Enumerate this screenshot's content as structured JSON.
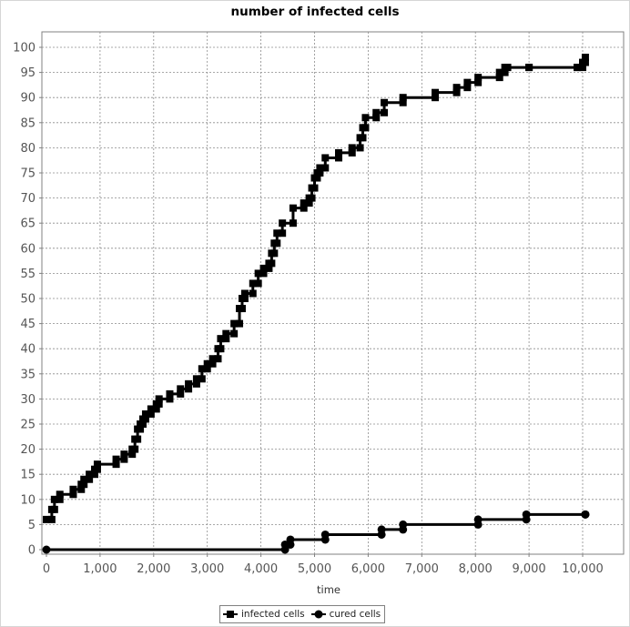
{
  "chart_data": {
    "type": "line",
    "title": "number of infected cells",
    "xlabel": "time",
    "ylabel": "",
    "xlim": [
      0,
      10300
    ],
    "ylim": [
      0,
      102
    ],
    "x_ticks": [
      "0",
      "1,000",
      "2,000",
      "3,000",
      "4,000",
      "5,000",
      "6,000",
      "7,000",
      "8,000",
      "9,000",
      "10,000"
    ],
    "y_ticks": [
      "0",
      "5",
      "10",
      "15",
      "20",
      "25",
      "30",
      "35",
      "40",
      "45",
      "50",
      "55",
      "60",
      "65",
      "70",
      "75",
      "80",
      "85",
      "90",
      "95",
      "100"
    ],
    "grid": true,
    "legend_position": "bottom",
    "series": [
      {
        "name": "infected cells",
        "marker": "square",
        "color": "#000000",
        "step": true,
        "x": [
          0,
          100,
          150,
          250,
          500,
          650,
          700,
          800,
          900,
          950,
          1300,
          1450,
          1600,
          1650,
          1700,
          1750,
          1800,
          1850,
          1950,
          2050,
          2100,
          2300,
          2500,
          2650,
          2800,
          2900,
          3000,
          3100,
          3200,
          3250,
          3350,
          3500,
          3600,
          3650,
          3700,
          3850,
          3950,
          4050,
          4150,
          4200,
          4250,
          4300,
          4400,
          4600,
          4800,
          4900,
          4950,
          5000,
          5050,
          5100,
          5200,
          5450,
          5700,
          5850,
          5900,
          5950,
          6150,
          6300,
          6650,
          7250,
          7650,
          7850,
          8050,
          8450,
          8550,
          8600,
          9000,
          9900,
          10000,
          10050
        ],
        "y": [
          6,
          8,
          10,
          11,
          12,
          13,
          14,
          15,
          16,
          17,
          18,
          19,
          20,
          22,
          24,
          25,
          26,
          27,
          28,
          29,
          30,
          31,
          32,
          33,
          34,
          36,
          37,
          38,
          40,
          42,
          43,
          45,
          48,
          50,
          51,
          53,
          55,
          56,
          57,
          59,
          61,
          63,
          65,
          68,
          69,
          70,
          72,
          74,
          75,
          76,
          78,
          79,
          80,
          82,
          84,
          86,
          87,
          89,
          90,
          91,
          92,
          93,
          94,
          95,
          96,
          96,
          96,
          96,
          97,
          98
        ]
      },
      {
        "name": "cured cells",
        "marker": "circle",
        "color": "#000000",
        "step": true,
        "x": [
          0,
          4450,
          4550,
          5200,
          6250,
          6650,
          8050,
          8950,
          10050
        ],
        "y": [
          0,
          1,
          2,
          3,
          4,
          5,
          6,
          7,
          7
        ]
      }
    ]
  },
  "legend": {
    "items": [
      {
        "label": "infected cells",
        "icon": "square-marker-icon"
      },
      {
        "label": "cured cells",
        "icon": "circle-marker-icon"
      }
    ]
  },
  "colors": {
    "series": "#000000",
    "grid": "#8c8c8c",
    "axis": "#808080",
    "background": "#ffffff"
  }
}
